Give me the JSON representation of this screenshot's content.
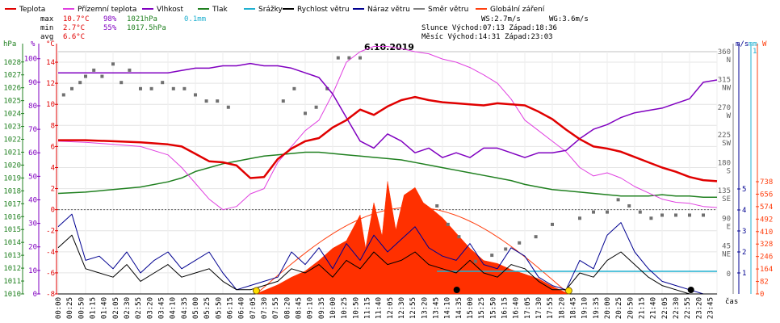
{
  "chart_data": {
    "type": "line",
    "title": "6.10.2019",
    "legend": [
      {
        "name": "Teplota",
        "color": "#e00000"
      },
      {
        "name": "Přízemní teplota",
        "color": "#e040e0"
      },
      {
        "name": "Vlhkost",
        "color": "#8000c0"
      },
      {
        "name": "Tlak",
        "color": "#208020"
      },
      {
        "name": "Srážky",
        "color": "#20b0d0"
      },
      {
        "name": "Rychlost větru",
        "color": "#000000"
      },
      {
        "name": "Náraz větru",
        "color": "#000090"
      },
      {
        "name": "Směr větru",
        "color": "#808080"
      },
      {
        "name": "Globální záření",
        "color": "#ff4010"
      }
    ],
    "stats": {
      "max": {
        "label": "max",
        "temp": "10.7°C",
        "hum": "98%",
        "press": "1021hPa",
        "rain": "0.1mm"
      },
      "min": {
        "label": "min",
        "temp": "2.7°C",
        "hum": "55%",
        "press": "1017.5hPa"
      },
      "avg": {
        "label": "avg",
        "temp": "6.6°C"
      }
    },
    "info": {
      "ws": "WS:2.7m/s",
      "wg": "WG:3.6m/s",
      "sun": "Slunce Východ:07:13  Západ:18:36",
      "moon": "Měsíc  Východ:14:31  Západ:23:03"
    },
    "axis_units": {
      "press": "hPa",
      "hum": "%",
      "temp": "°C",
      "wind": "m/s",
      "rain": "mm",
      "rad": "W",
      "time": "čas"
    },
    "press_ticks": [
      "1028",
      "1027",
      "1026",
      "1025",
      "1024",
      "1023",
      "1022",
      "1021",
      "1020",
      "1019",
      "1018",
      "1017",
      "1016",
      "1015",
      "1014",
      "1013",
      "1012",
      "1011",
      "1010"
    ],
    "hum_ticks": [
      "100",
      "90",
      "80",
      "70",
      "60",
      "50",
      "40",
      "30",
      "20",
      "10",
      "0"
    ],
    "temp_ticks": [
      "14",
      "12",
      "10",
      "8",
      "6",
      "4",
      "2",
      "0",
      "-2",
      "-4",
      "-6",
      "-8"
    ],
    "dir_ticks": [
      "360",
      "N",
      "315",
      "NW",
      "270",
      "W",
      "225",
      "SW",
      "180",
      "S",
      "135",
      "SE",
      "90",
      "E",
      "45",
      "NE",
      "0"
    ],
    "wind_ticks": [
      "5",
      "4",
      "3",
      "2",
      "1"
    ],
    "rain_ticks": [
      "1",
      "0"
    ],
    "rad_ticks": [
      "738",
      "656",
      "574",
      "492",
      "410",
      "328",
      "246",
      "164",
      "82",
      "0"
    ],
    "time_labels": [
      "00:00",
      "00:25",
      "00:50",
      "01:15",
      "01:40",
      "02:05",
      "02:30",
      "02:55",
      "03:20",
      "03:45",
      "04:10",
      "04:35",
      "05:00",
      "05:25",
      "05:50",
      "06:15",
      "06:40",
      "07:05",
      "07:30",
      "07:55",
      "08:20",
      "08:45",
      "09:10",
      "09:35",
      "10:00",
      "10:25",
      "10:50",
      "11:15",
      "11:40",
      "12:05",
      "12:30",
      "12:55",
      "13:20",
      "13:45",
      "14:10",
      "14:35",
      "15:00",
      "15:25",
      "15:50",
      "16:15",
      "16:40",
      "17:05",
      "17:30",
      "17:55",
      "18:20",
      "18:45",
      "19:10",
      "19:35",
      "20:00",
      "20:25",
      "20:50",
      "21:15",
      "21:40",
      "22:05",
      "22:30",
      "22:55",
      "23:20",
      "23:45"
    ],
    "x_range_hours": [
      0,
      24
    ],
    "series": [
      {
        "key": "temp",
        "name": "Teplota",
        "color": "#e00000",
        "width": 2.5,
        "x": [
          0,
          1,
          2,
          3,
          4,
          4.5,
          5,
          5.5,
          6,
          6.5,
          7,
          7.5,
          8,
          8.5,
          9,
          9.5,
          10,
          10.5,
          11,
          11.5,
          12,
          12.5,
          13,
          13.5,
          14,
          14.5,
          15,
          15.5,
          16,
          16.5,
          17,
          17.5,
          18,
          18.5,
          19,
          19.5,
          20,
          20.5,
          21,
          21.5,
          22,
          22.5,
          23,
          23.5,
          24
        ],
        "y": [
          6.6,
          6.6,
          6.5,
          6.4,
          6.2,
          6.0,
          5.3,
          4.6,
          4.5,
          4.2,
          3.0,
          3.1,
          4.8,
          5.8,
          6.5,
          6.8,
          7.8,
          8.5,
          9.5,
          9.0,
          9.8,
          10.4,
          10.7,
          10.4,
          10.2,
          10.1,
          10.0,
          9.9,
          10.1,
          10.0,
          9.9,
          9.3,
          8.6,
          7.6,
          6.7,
          6.0,
          5.8,
          5.5,
          5.0,
          4.5,
          4.0,
          3.6,
          3.1,
          2.8,
          2.7
        ]
      },
      {
        "key": "ground",
        "name": "Přízemní teplota",
        "color": "#e040e0",
        "width": 1,
        "x": [
          0,
          1,
          2,
          3,
          4,
          4.5,
          5,
          5.5,
          6,
          6.5,
          7,
          7.5,
          8,
          8.5,
          9,
          9.5,
          10,
          10.5,
          11,
          11.5,
          12,
          12.5,
          13,
          13.5,
          14,
          14.5,
          15,
          15.5,
          16,
          16.5,
          17,
          17.5,
          18,
          18.5,
          19,
          19.5,
          20,
          20.5,
          21,
          21.5,
          22,
          22.5,
          23,
          23.5,
          24
        ],
        "y": [
          6.5,
          6.4,
          6.2,
          6.0,
          5.2,
          4.0,
          2.5,
          1.0,
          0.0,
          0.3,
          1.5,
          2.0,
          4.5,
          6.0,
          7.5,
          8.5,
          11.0,
          14.0,
          15.0,
          15.5,
          15.5,
          15.3,
          15.0,
          14.8,
          14.3,
          14.0,
          13.5,
          12.8,
          12.0,
          10.5,
          8.5,
          7.5,
          6.5,
          5.5,
          4.0,
          3.2,
          3.5,
          3.0,
          2.2,
          1.6,
          1.0,
          0.7,
          0.6,
          0.3,
          0.2
        ]
      },
      {
        "key": "hum",
        "name": "Vlhkost",
        "color": "#8000c0",
        "width": 1.5,
        "x": [
          0,
          1,
          2,
          3,
          4,
          4.5,
          5,
          5.5,
          6,
          6.5,
          7,
          7.5,
          8,
          8.5,
          9,
          9.5,
          10,
          10.5,
          11,
          11.5,
          12,
          12.5,
          13,
          13.5,
          14,
          14.5,
          15,
          15.5,
          16,
          16.5,
          17,
          17.5,
          18,
          18.5,
          19,
          19.5,
          20,
          20.5,
          21,
          21.5,
          22,
          22.5,
          23,
          23.5,
          24
        ],
        "y": [
          94,
          94,
          94,
          94,
          94,
          95,
          96,
          96,
          97,
          97,
          98,
          97,
          97,
          96,
          94,
          92,
          85,
          75,
          65,
          62,
          68,
          65,
          60,
          62,
          58,
          60,
          58,
          62,
          62,
          60,
          58,
          60,
          60,
          61,
          66,
          70,
          72,
          75,
          77,
          78,
          79,
          81,
          83,
          90,
          91
        ]
      },
      {
        "key": "press",
        "name": "Tlak",
        "color": "#208020",
        "width": 1.5,
        "x": [
          0,
          1,
          2,
          3,
          4,
          4.5,
          5,
          5.5,
          6,
          6.5,
          7,
          7.5,
          8,
          8.5,
          9,
          9.5,
          10,
          10.5,
          11,
          11.5,
          12,
          12.5,
          13,
          13.5,
          14,
          14.5,
          15,
          15.5,
          16,
          16.5,
          17,
          17.5,
          18,
          18.5,
          19,
          19.5,
          20,
          20.5,
          21,
          21.5,
          22,
          22.5,
          23,
          23.5,
          24
        ],
        "y": [
          1017.8,
          1017.9,
          1018.1,
          1018.3,
          1018.7,
          1019.0,
          1019.5,
          1019.8,
          1020.1,
          1020.3,
          1020.5,
          1020.7,
          1020.8,
          1020.9,
          1021.0,
          1021.0,
          1020.9,
          1020.8,
          1020.7,
          1020.6,
          1020.5,
          1020.4,
          1020.2,
          1020.0,
          1019.8,
          1019.6,
          1019.4,
          1019.2,
          1019.0,
          1018.8,
          1018.5,
          1018.3,
          1018.1,
          1018.0,
          1017.9,
          1017.8,
          1017.7,
          1017.6,
          1017.6,
          1017.6,
          1017.7,
          1017.6,
          1017.6,
          1017.5,
          1017.5
        ]
      },
      {
        "key": "gust",
        "name": "Náraz větru",
        "color": "#000090",
        "width": 1,
        "x": [
          0,
          0.5,
          1,
          1.5,
          2,
          2.5,
          3,
          3.5,
          4,
          4.5,
          5,
          5.5,
          6,
          6.5,
          7,
          7.5,
          8,
          8.5,
          9,
          9.5,
          10,
          10.5,
          11,
          11.5,
          12,
          12.5,
          13,
          13.5,
          14,
          14.5,
          15,
          15.5,
          16,
          16.5,
          17,
          17.5,
          18,
          18.5,
          19,
          19.5,
          20,
          20.5,
          21,
          21.5,
          22,
          22.5,
          23,
          23.5,
          24
        ],
        "y": [
          3.2,
          3.8,
          1.6,
          1.8,
          1.2,
          2.0,
          1.0,
          1.6,
          2.0,
          1.2,
          1.6,
          2.0,
          1.0,
          0.2,
          0.4,
          0.6,
          0.8,
          2.0,
          1.4,
          2.2,
          1.2,
          2.4,
          1.6,
          2.8,
          2.0,
          2.6,
          3.2,
          2.2,
          1.8,
          1.6,
          2.4,
          1.4,
          1.2,
          2.2,
          1.8,
          0.8,
          0.4,
          0.2,
          1.6,
          1.2,
          2.8,
          3.4,
          2.0,
          1.2,
          0.6,
          0.4,
          0.2,
          0.0,
          0.0
        ]
      },
      {
        "key": "speed",
        "name": "Rychlost větru",
        "color": "#000000",
        "width": 1,
        "x": [
          0,
          0.5,
          1,
          1.5,
          2,
          2.5,
          3,
          3.5,
          4,
          4.5,
          5,
          5.5,
          6,
          6.5,
          7,
          7.5,
          8,
          8.5,
          9,
          9.5,
          10,
          10.5,
          11,
          11.5,
          12,
          12.5,
          13,
          13.5,
          14,
          14.5,
          15,
          15.5,
          16,
          16.5,
          17,
          17.5,
          18,
          18.5,
          19,
          19.5,
          20,
          20.5,
          21,
          21.5,
          22,
          22.5,
          23,
          23.5,
          24
        ],
        "y": [
          2.2,
          2.8,
          1.2,
          1.0,
          0.8,
          1.4,
          0.6,
          1.0,
          1.4,
          0.8,
          1.0,
          1.2,
          0.6,
          0.2,
          0.2,
          0.4,
          0.6,
          1.2,
          1.0,
          1.4,
          0.8,
          1.6,
          1.2,
          2.0,
          1.4,
          1.6,
          2.0,
          1.4,
          1.2,
          1.0,
          1.6,
          1.0,
          0.8,
          1.4,
          1.2,
          0.6,
          0.2,
          0.2,
          1.0,
          0.8,
          1.6,
          2.0,
          1.4,
          0.8,
          0.4,
          0.2,
          0.0,
          0.0,
          0.0
        ]
      },
      {
        "key": "rad",
        "name": "Globální záření",
        "color": "#ff4010",
        "width": 1,
        "x": [
          7.2,
          8,
          8.5,
          9,
          9.5,
          10,
          10.5,
          11,
          11.2,
          11.5,
          11.8,
          12,
          12.3,
          12.6,
          13,
          13.3,
          13.6,
          14,
          14.5,
          15,
          15.5,
          16,
          16.5,
          17,
          17.5,
          18,
          18.6
        ],
        "y": [
          0,
          60,
          110,
          150,
          220,
          300,
          350,
          520,
          300,
          600,
          380,
          740,
          420,
          650,
          700,
          600,
          560,
          500,
          400,
          300,
          220,
          200,
          160,
          130,
          100,
          50,
          0
        ]
      }
    ],
    "direction_points": {
      "x": [
        0.2,
        0.5,
        0.8,
        1.0,
        1.3,
        1.6,
        2.0,
        2.3,
        2.6,
        3.0,
        3.4,
        3.8,
        4.2,
        4.6,
        5.0,
        5.4,
        5.8,
        6.2,
        8.2,
        8.6,
        9.0,
        9.4,
        9.8,
        10.2,
        10.6,
        11.0,
        13.8,
        14.2,
        14.6,
        15.2,
        15.8,
        16.3,
        16.8,
        17.4,
        18.0,
        19.0,
        19.5,
        20.0,
        20.4,
        20.8,
        21.2,
        21.6,
        22.0,
        22.5,
        23.0,
        23.5
      ],
      "y": [
        290,
        300,
        310,
        320,
        330,
        320,
        340,
        310,
        330,
        300,
        300,
        310,
        300,
        300,
        290,
        280,
        280,
        270,
        280,
        300,
        260,
        270,
        300,
        350,
        350,
        350,
        110,
        80,
        60,
        20,
        30,
        40,
        50,
        60,
        80,
        90,
        100,
        100,
        120,
        110,
        100,
        90,
        95,
        95,
        95,
        95
      ]
    },
    "solar_curve_peak_w": 570,
    "sunrise_h": 7.22,
    "sunset_h": 18.6,
    "moonrise_h": 14.52,
    "moonset_h": 23.05,
    "rain_line_from_h": 13.8,
    "rain_value_mm": 0.1
  }
}
